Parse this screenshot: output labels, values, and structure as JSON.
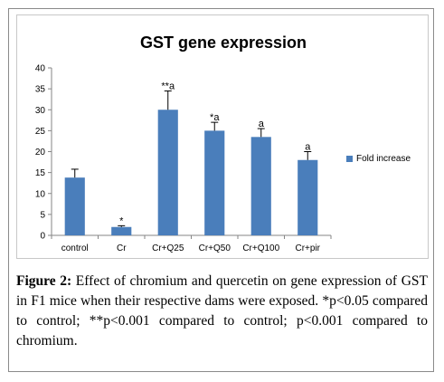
{
  "chart_data": {
    "type": "bar",
    "title": "GST gene expression",
    "categories": [
      "control",
      "Cr",
      "Cr+Q25",
      "Cr+Q50",
      "Cr+Q100",
      "Cr+pir"
    ],
    "series": [
      {
        "name": "Fold increase",
        "values": [
          13.8,
          2.0,
          30.0,
          25.0,
          23.5,
          18.0
        ],
        "errors": [
          2.0,
          0.3,
          4.5,
          2.0,
          2.0,
          2.0
        ],
        "annotations": [
          "",
          "*",
          "**,a",
          "*,a",
          "a",
          "a"
        ]
      }
    ],
    "ylim": [
      0,
      40
    ],
    "yticks": [
      0,
      5,
      10,
      15,
      20,
      25,
      30,
      35,
      40
    ],
    "grid": false,
    "legend": "right",
    "bar_color": "#4a7ebb"
  },
  "figure": {
    "caption_label": "Figure 2:",
    "caption_text": " Effect of chromium and quercetin on gene expression of GST in F1 mice when their respective dams were exposed. *p<0.05 compared to control; **p<0.001 compared to control; p<0.001 compared to chromium."
  }
}
